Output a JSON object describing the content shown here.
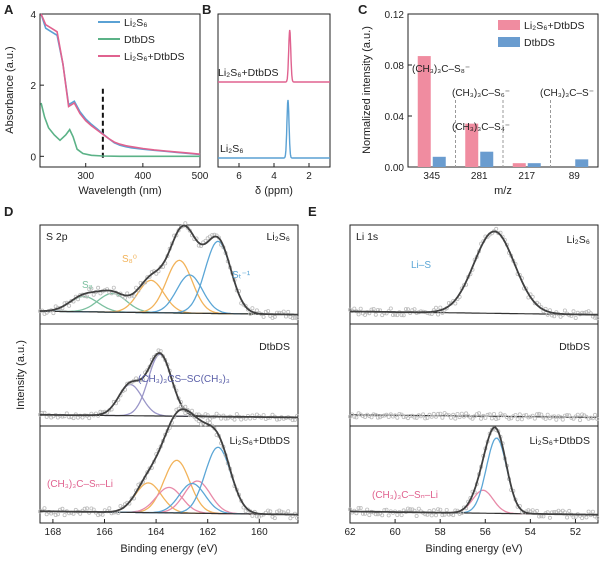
{
  "colors": {
    "li2s6": "#5aa1d4",
    "dtbds": "#5bb287",
    "mix": "#e0628f",
    "bar_pink": "#f08ca0",
    "bar_blue": "#6a9ccf",
    "envelope": "#404040",
    "s8": "#7cc0a0",
    "s8_2": "#f2b35a",
    "st": "#5ba6d6",
    "dtb_fit": "#9a96c8",
    "scatter": "#bdbdbd",
    "pink_fit": "#e88aa8"
  },
  "panel_letters": [
    "A",
    "B",
    "C",
    "D",
    "E"
  ],
  "chart_data": [
    {
      "id": "A",
      "type": "line",
      "xlabel": "Wavelength (nm)",
      "ylabel": "Absorbance (a.u.)",
      "xlim": [
        220,
        500
      ],
      "ylim": [
        -0.3,
        4
      ],
      "xticks": [
        300,
        400,
        500
      ],
      "yticks": [
        0,
        2,
        4
      ],
      "vline_x": 330,
      "series": [
        {
          "name": "Li₂S₆",
          "x": [
            222,
            230,
            240,
            250,
            260,
            270,
            280,
            290,
            300,
            310,
            320,
            330,
            340,
            350,
            360,
            370,
            380,
            400,
            420,
            440,
            460,
            480,
            500
          ],
          "y": [
            4.0,
            3.6,
            3.5,
            3.4,
            2.6,
            1.45,
            1.55,
            1.25,
            1.05,
            0.9,
            0.77,
            0.63,
            0.5,
            0.38,
            0.31,
            0.27,
            0.24,
            0.2,
            0.17,
            0.14,
            0.11,
            0.08,
            0.05
          ]
        },
        {
          "name": "DtbDS",
          "x": [
            222,
            228,
            235,
            245,
            255,
            265,
            272,
            278,
            285,
            295,
            310,
            330,
            360,
            400,
            450,
            500
          ],
          "y": [
            1.5,
            1.1,
            0.8,
            0.6,
            0.45,
            0.6,
            0.75,
            0.55,
            0.2,
            0.08,
            0.03,
            0.01,
            0.0,
            0.0,
            0.0,
            0.0
          ]
        },
        {
          "name": "Li₂S₆+DtbDS",
          "x": [
            222,
            230,
            240,
            250,
            260,
            270,
            280,
            290,
            300,
            310,
            320,
            330,
            340,
            350,
            360,
            370,
            380,
            400,
            420,
            440,
            460,
            480,
            500
          ],
          "y": [
            4.0,
            3.7,
            3.6,
            3.5,
            2.6,
            1.4,
            1.5,
            1.2,
            1.0,
            0.86,
            0.74,
            0.62,
            0.5,
            0.4,
            0.34,
            0.3,
            0.27,
            0.22,
            0.18,
            0.15,
            0.12,
            0.09,
            0.06
          ]
        }
      ]
    },
    {
      "id": "B",
      "type": "line",
      "xlabel": "δ (ppm)",
      "xlim": [
        7.2,
        0.8
      ],
      "xticks": [
        6,
        4,
        2
      ],
      "series": [
        {
          "name": "Li₂S₆+DtbDS",
          "peak_ppm": 3.1,
          "peak_height": 1.0,
          "width_ppm": 0.06
        },
        {
          "name": "Li₂S₆",
          "peak_ppm": 3.2,
          "peak_height": 1.0,
          "width_ppm": 0.06
        }
      ],
      "labels": [
        "Li₂S₆+DtbDS",
        "Li₂S₆"
      ]
    },
    {
      "id": "C",
      "type": "bar",
      "xlabel": "m/z",
      "ylabel": "Normalized intensity (a.u.)",
      "ylim": [
        0,
        0.12
      ],
      "yticks": [
        "0.00",
        "0.04",
        "0.08",
        "0.12"
      ],
      "categories": [
        "345",
        "281",
        "217",
        "89"
      ],
      "series": [
        {
          "name": "Li₂S₆+DtbDS",
          "values": [
            0.087,
            0.034,
            0.003,
            0.0
          ]
        },
        {
          "name": "DtbDS",
          "values": [
            0.008,
            0.012,
            0.003,
            0.006
          ]
        }
      ],
      "annotations": [
        {
          "text": "(CH₃)₃C–S₈⁻",
          "category": "345"
        },
        {
          "text": "(CH₃)₃C–S₆⁻",
          "category": "281"
        },
        {
          "text": "(CH₃)₃C–S₄⁻",
          "category": "217"
        },
        {
          "text": "(CH₃)₃C–S⁻",
          "category": "89"
        }
      ]
    },
    {
      "id": "D",
      "type": "line",
      "title": "S 2p",
      "xlabel": "Binding energy (eV)",
      "ylabel": "Intensity (a.u.)",
      "xlim": [
        168.5,
        158.5
      ],
      "xticks": [
        168,
        166,
        164,
        162,
        160
      ],
      "stack": [
        {
          "label": "Li₂S₆",
          "components": [
            {
              "name": "S₈",
              "center": 166.8,
              "height": 0.18,
              "width": 0.55,
              "color_key": "s8"
            },
            {
              "name": "S₈",
              "center": 165.7,
              "height": 0.22,
              "width": 0.55,
              "color_key": "s8"
            },
            {
              "name": "S₈⁰",
              "center": 164.2,
              "height": 0.38,
              "width": 0.5,
              "color_key": "s8_2"
            },
            {
              "name": "S₈⁰",
              "center": 163.1,
              "height": 0.62,
              "width": 0.5,
              "color_key": "s8_2"
            },
            {
              "name": "Sₜ⁻¹",
              "center": 162.7,
              "height": 0.45,
              "width": 0.5,
              "color_key": "st"
            },
            {
              "name": "Sₜ⁻¹",
              "center": 161.6,
              "height": 0.85,
              "width": 0.5,
              "color_key": "st"
            }
          ],
          "labels": [
            "S₈",
            "S₈⁰",
            "Sₜ⁻¹"
          ]
        },
        {
          "label": "DtbDS",
          "components": [
            {
              "name": "(CH₃)₃CS–SC(CH₃)₃",
              "center": 165.0,
              "height": 0.48,
              "width": 0.45,
              "color_key": "dtb_fit"
            },
            {
              "name": "(CH₃)₃CS–SC(CH₃)₃",
              "center": 163.85,
              "height": 0.95,
              "width": 0.45,
              "color_key": "dtb_fit"
            }
          ],
          "labels": [
            "(CH₃)₃CS–SC(CH₃)₃"
          ]
        },
        {
          "label": "Li₂S₆+DtbDS",
          "components": [
            {
              "name": "s",
              "center": 164.3,
              "height": 0.35,
              "width": 0.5,
              "color_key": "s8_2"
            },
            {
              "name": "s",
              "center": 163.2,
              "height": 0.62,
              "width": 0.5,
              "color_key": "s8_2"
            },
            {
              "name": "(CH₃)₃C–Sₙ–Li",
              "center": 163.5,
              "height": 0.3,
              "width": 0.5,
              "color_key": "pink_fit"
            },
            {
              "name": "(CH₃)₃C–Sₙ–Li",
              "center": 162.4,
              "height": 0.38,
              "width": 0.5,
              "color_key": "pink_fit"
            },
            {
              "name": "st",
              "center": 162.6,
              "height": 0.35,
              "width": 0.5,
              "color_key": "st"
            },
            {
              "name": "st",
              "center": 161.6,
              "height": 0.78,
              "width": 0.5,
              "color_key": "st"
            }
          ],
          "labels": [
            "(CH₃)₃C–Sₙ–Li"
          ]
        }
      ]
    },
    {
      "id": "E",
      "type": "line",
      "title": "Li 1s",
      "xlabel": "Binding energy (eV)",
      "xlim": [
        62,
        51
      ],
      "xticks": [
        62,
        60,
        58,
        56,
        54,
        52
      ],
      "stack": [
        {
          "label": "Li₂S₆",
          "components": [
            {
              "name": "Li–S",
              "center": 55.6,
              "height": 1.0,
              "width": 0.9,
              "color_key": "st"
            }
          ],
          "labels": [
            "Li–S"
          ]
        },
        {
          "label": "DtbDS",
          "components": [],
          "labels": []
        },
        {
          "label": "Li₂S₆+DtbDS",
          "components": [
            {
              "name": "(CH₃)₃C–Sₙ–Li",
              "center": 56.1,
              "height": 0.28,
              "width": 0.45,
              "color_key": "pink_fit"
            },
            {
              "name": "li-s",
              "center": 55.5,
              "height": 0.92,
              "width": 0.45,
              "color_key": "st"
            }
          ],
          "labels": [
            "(CH₃)₃C–Sₙ–Li"
          ]
        }
      ]
    }
  ]
}
